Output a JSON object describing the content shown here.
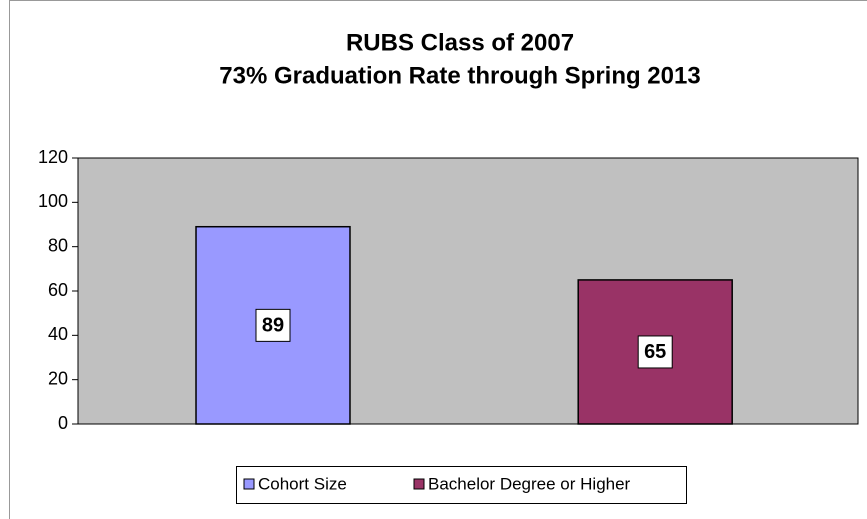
{
  "chart_data": {
    "type": "bar",
    "title": "RUBS Class of 2007",
    "subtitle": "73% Graduation Rate through Spring 2013",
    "categories": [
      null
    ],
    "series": [
      {
        "name": "Cohort Size",
        "color": "#9999ff",
        "values": [
          89
        ]
      },
      {
        "name": "Bachelor Degree or Higher",
        "color": "#993366",
        "values": [
          65
        ]
      }
    ],
    "ylim": [
      0,
      120
    ],
    "yticks": [
      0,
      20,
      40,
      60,
      80,
      100,
      120
    ],
    "plot_background": "#c0c0c0",
    "legend": "bottom"
  }
}
